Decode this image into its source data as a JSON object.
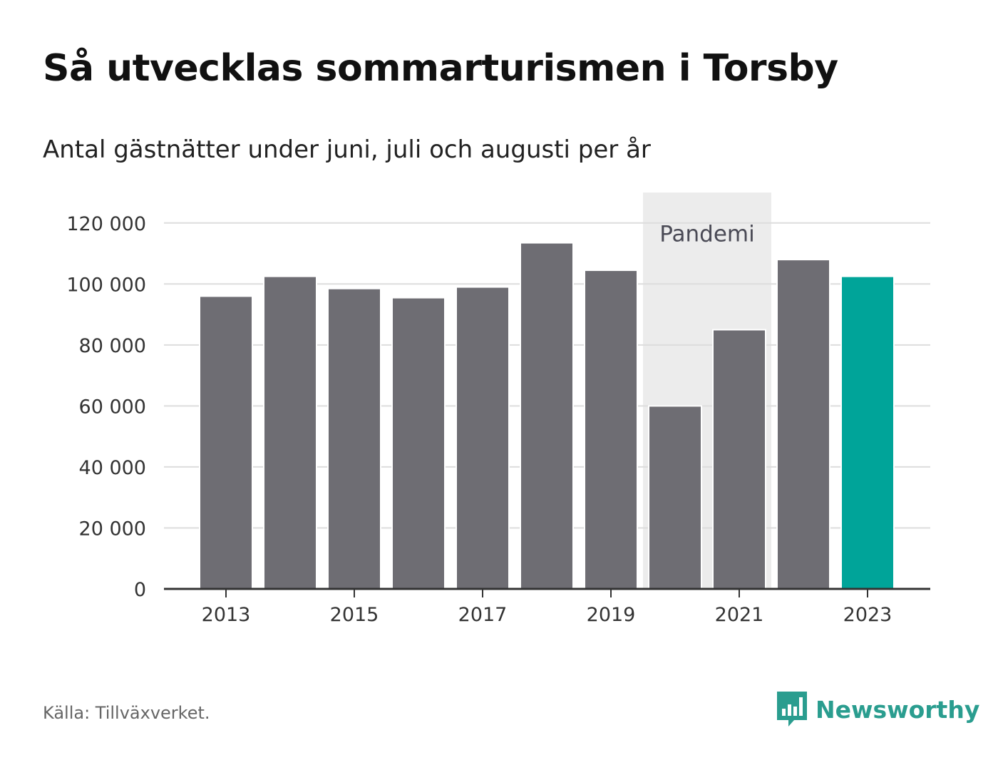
{
  "title": "Så utvecklas sommarturismen i Torsby",
  "subtitle": "Antal gästnätter under juni, juli och augusti per år",
  "source": "Källa: Tillväxverket.",
  "brand": {
    "name": "Newsworthy",
    "icon": "newsworthy-logo-icon",
    "color": "#2a9d8f"
  },
  "colors": {
    "bar": "#6e6d73",
    "highlight": "#00a499",
    "band": "#ececec",
    "grid": "#dddddd",
    "axis": "#333333"
  },
  "chart_data": {
    "type": "bar",
    "categories": [
      "2013",
      "2014",
      "2015",
      "2016",
      "2017",
      "2018",
      "2019",
      "2020",
      "2021",
      "2022",
      "2023"
    ],
    "values": [
      96000,
      102500,
      98500,
      95500,
      99000,
      113500,
      104500,
      60000,
      85000,
      108000,
      102500
    ],
    "highlight_index": 10,
    "x_tick_labels": [
      "2013",
      "2015",
      "2017",
      "2019",
      "2021",
      "2023"
    ],
    "y_ticks": [
      0,
      20000,
      40000,
      60000,
      80000,
      100000,
      120000
    ],
    "y_tick_labels": [
      "0",
      "20 000",
      "40 000",
      "60 000",
      "80 000",
      "100 000",
      "120 000"
    ],
    "ylim": [
      0,
      130000
    ],
    "annotation": {
      "label": "Pandemi",
      "from": "2020",
      "to": "2021"
    },
    "grid": true,
    "xlabel": "",
    "ylabel": ""
  }
}
